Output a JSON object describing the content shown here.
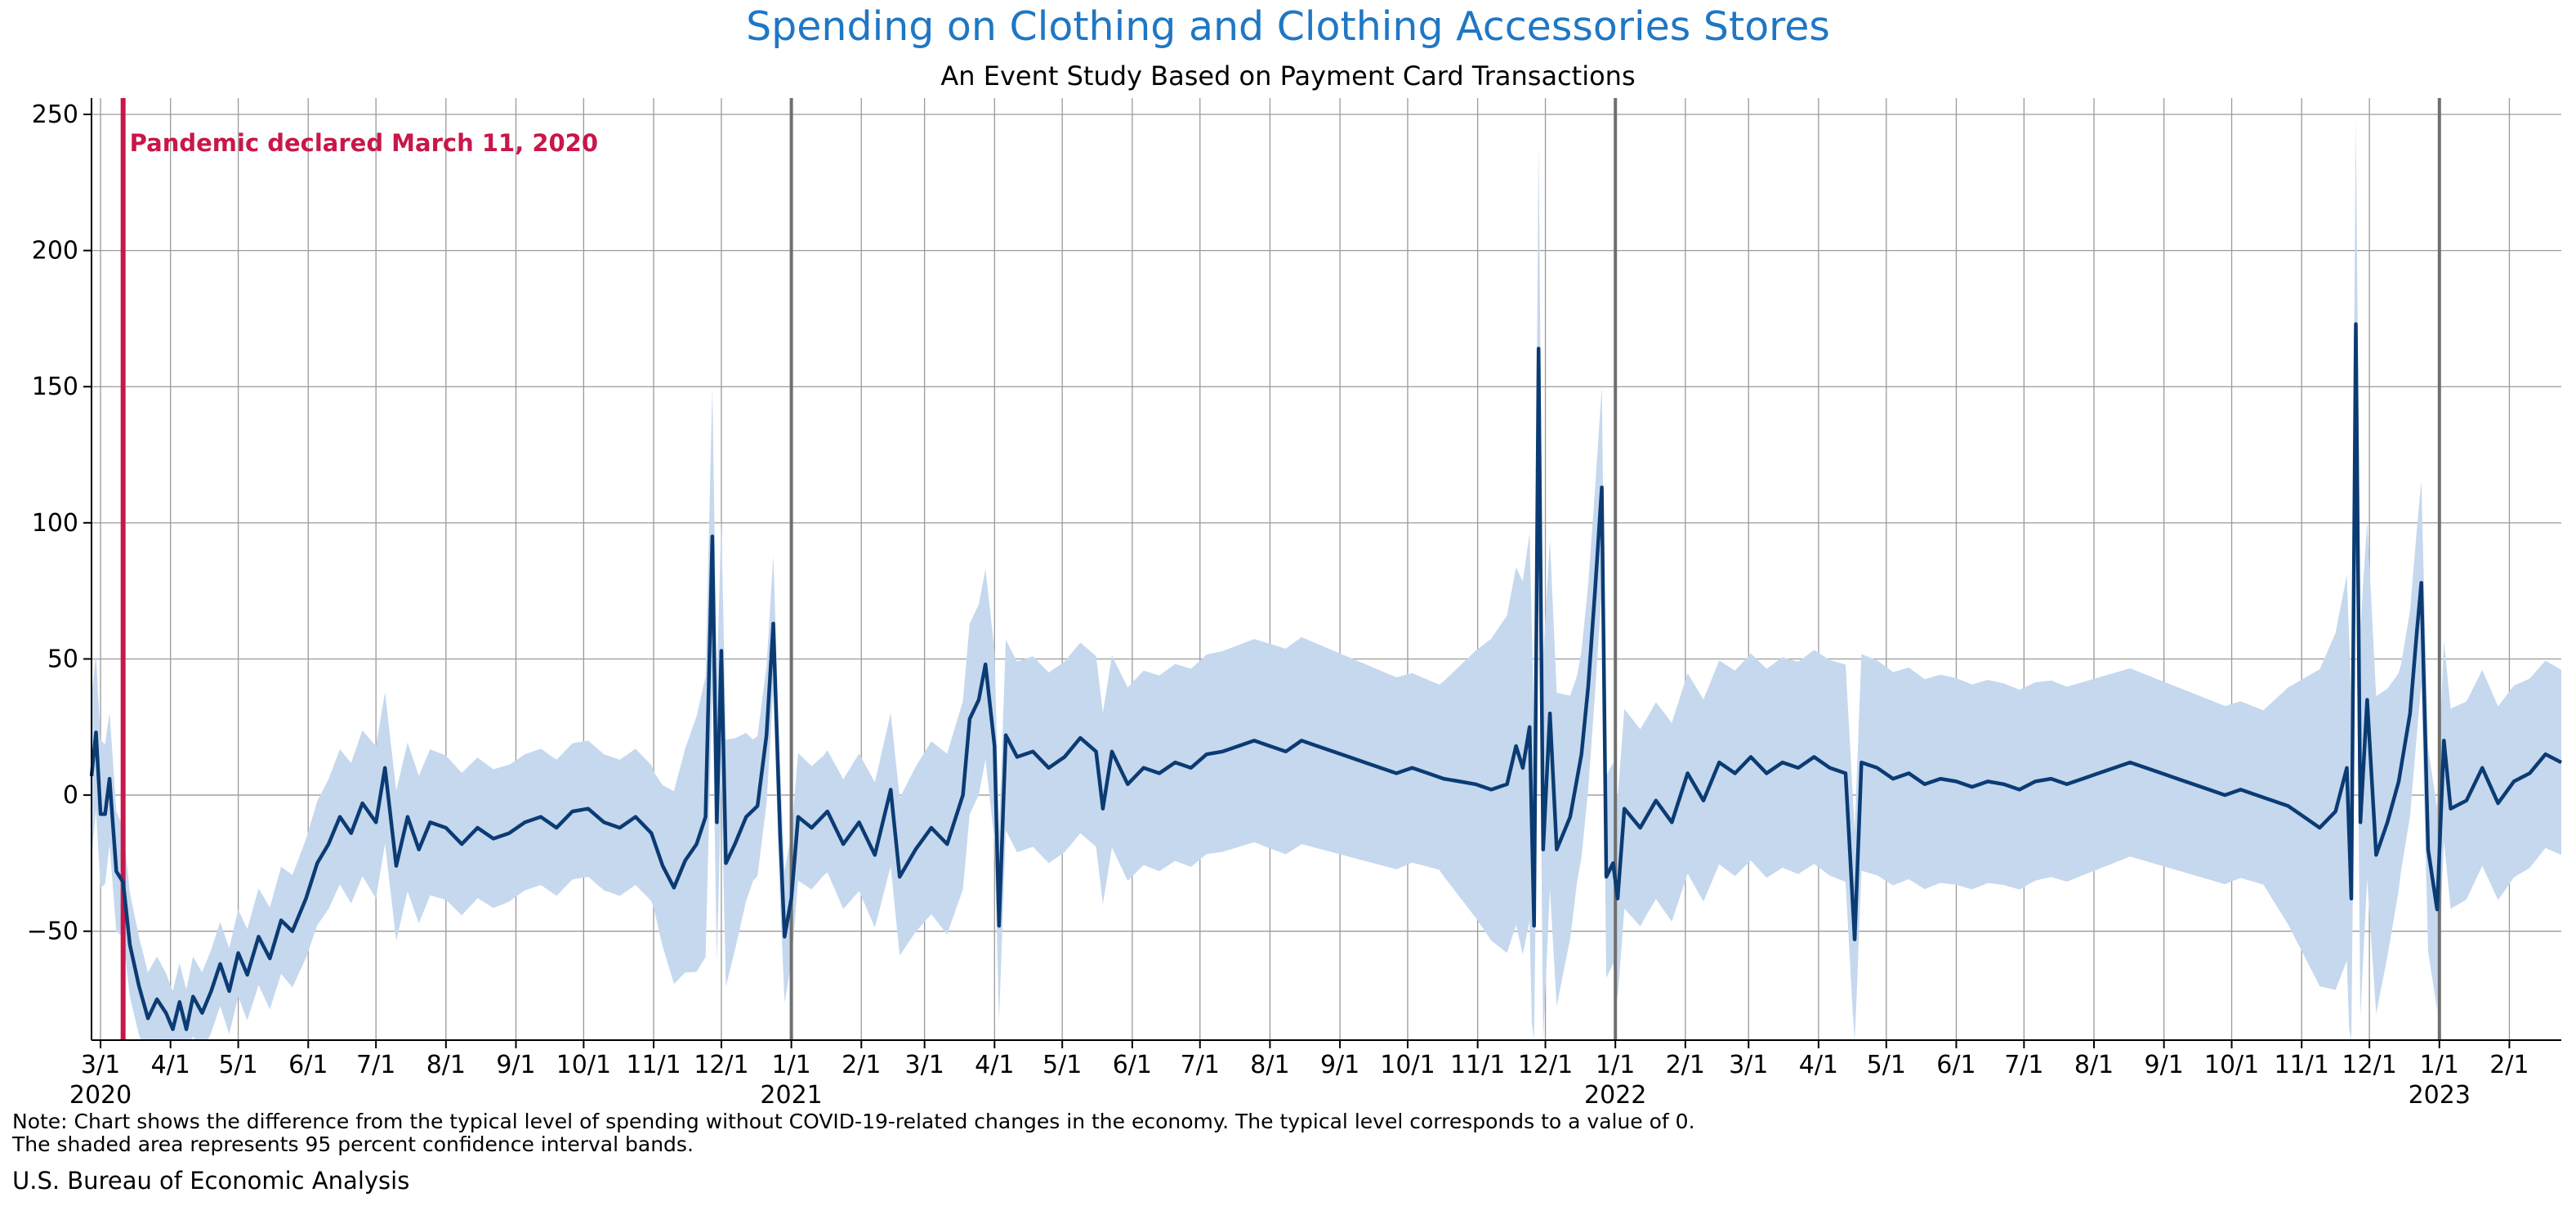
{
  "chart_data": {
    "type": "line",
    "title": "Spending on Clothing and Clothing Accessories Stores",
    "subtitle": "An Event Study Based on Payment Card Transactions",
    "ylim": [
      -90,
      256
    ],
    "yticks": [
      -50,
      0,
      50,
      100,
      150,
      200,
      250
    ],
    "x_range": [
      "2020-02-26",
      "2023-02-24"
    ],
    "grid": true,
    "x_ticks": [
      {
        "date": "2020-03-01",
        "label": "3/1",
        "year": "2020"
      },
      {
        "date": "2020-04-01",
        "label": "4/1"
      },
      {
        "date": "2020-05-01",
        "label": "5/1"
      },
      {
        "date": "2020-06-01",
        "label": "6/1"
      },
      {
        "date": "2020-07-01",
        "label": "7/1"
      },
      {
        "date": "2020-08-01",
        "label": "8/1"
      },
      {
        "date": "2020-09-01",
        "label": "9/1"
      },
      {
        "date": "2020-10-01",
        "label": "10/1"
      },
      {
        "date": "2020-11-01",
        "label": "11/1"
      },
      {
        "date": "2020-12-01",
        "label": "12/1"
      },
      {
        "date": "2021-01-01",
        "label": "1/1",
        "year": "2021"
      },
      {
        "date": "2021-02-01",
        "label": "2/1"
      },
      {
        "date": "2021-03-01",
        "label": "3/1"
      },
      {
        "date": "2021-04-01",
        "label": "4/1"
      },
      {
        "date": "2021-05-01",
        "label": "5/1"
      },
      {
        "date": "2021-06-01",
        "label": "6/1"
      },
      {
        "date": "2021-07-01",
        "label": "7/1"
      },
      {
        "date": "2021-08-01",
        "label": "8/1"
      },
      {
        "date": "2021-09-01",
        "label": "9/1"
      },
      {
        "date": "2021-10-01",
        "label": "10/1"
      },
      {
        "date": "2021-11-01",
        "label": "11/1"
      },
      {
        "date": "2021-12-01",
        "label": "12/1"
      },
      {
        "date": "2022-01-01",
        "label": "1/1",
        "year": "2022"
      },
      {
        "date": "2022-02-01",
        "label": "2/1"
      },
      {
        "date": "2022-03-01",
        "label": "3/1"
      },
      {
        "date": "2022-04-01",
        "label": "4/1"
      },
      {
        "date": "2022-05-01",
        "label": "5/1"
      },
      {
        "date": "2022-06-01",
        "label": "6/1"
      },
      {
        "date": "2022-07-01",
        "label": "7/1"
      },
      {
        "date": "2022-08-01",
        "label": "8/1"
      },
      {
        "date": "2022-09-01",
        "label": "9/1"
      },
      {
        "date": "2022-10-01",
        "label": "10/1"
      },
      {
        "date": "2022-11-01",
        "label": "11/1"
      },
      {
        "date": "2022-12-01",
        "label": "12/1"
      },
      {
        "date": "2023-01-01",
        "label": "1/1",
        "year": "2023"
      },
      {
        "date": "2023-02-01",
        "label": "2/1"
      }
    ],
    "annotation": {
      "date": "2020-03-11",
      "text": "Pandemic declared March 11, 2020",
      "color": "#c8174a"
    },
    "series": [
      {
        "role": "estimate",
        "color": "#0b3b73",
        "points": [
          [
            "2020-02-26",
            7
          ],
          [
            "2020-02-28",
            23
          ],
          [
            "2020-03-01",
            -7
          ],
          [
            "2020-03-03",
            -7
          ],
          [
            "2020-03-05",
            6
          ],
          [
            "2020-03-08",
            -28
          ],
          [
            "2020-03-11",
            -32
          ],
          [
            "2020-03-14",
            -55
          ],
          [
            "2020-03-18",
            -70
          ],
          [
            "2020-03-22",
            -82
          ],
          [
            "2020-03-26",
            -75
          ],
          [
            "2020-03-30",
            -80
          ],
          [
            "2020-04-02",
            -86
          ],
          [
            "2020-04-05",
            -76
          ],
          [
            "2020-04-08",
            -86
          ],
          [
            "2020-04-11",
            -74
          ],
          [
            "2020-04-15",
            -80
          ],
          [
            "2020-04-19",
            -72
          ],
          [
            "2020-04-23",
            -62
          ],
          [
            "2020-04-27",
            -72
          ],
          [
            "2020-05-01",
            -58
          ],
          [
            "2020-05-05",
            -66
          ],
          [
            "2020-05-10",
            -52
          ],
          [
            "2020-05-15",
            -60
          ],
          [
            "2020-05-20",
            -46
          ],
          [
            "2020-05-25",
            -50
          ],
          [
            "2020-05-31",
            -38
          ],
          [
            "2020-06-05",
            -25
          ],
          [
            "2020-06-10",
            -18
          ],
          [
            "2020-06-15",
            -8
          ],
          [
            "2020-06-20",
            -14
          ],
          [
            "2020-06-25",
            -3
          ],
          [
            "2020-07-01",
            -10
          ],
          [
            "2020-07-05",
            10
          ],
          [
            "2020-07-10",
            -26
          ],
          [
            "2020-07-15",
            -8
          ],
          [
            "2020-07-20",
            -20
          ],
          [
            "2020-07-25",
            -10
          ],
          [
            "2020-08-01",
            -12
          ],
          [
            "2020-08-08",
            -18
          ],
          [
            "2020-08-15",
            -12
          ],
          [
            "2020-08-22",
            -16
          ],
          [
            "2020-08-29",
            -14
          ],
          [
            "2020-09-05",
            -10
          ],
          [
            "2020-09-12",
            -8
          ],
          [
            "2020-09-19",
            -12
          ],
          [
            "2020-09-26",
            -6
          ],
          [
            "2020-10-03",
            -5
          ],
          [
            "2020-10-10",
            -10
          ],
          [
            "2020-10-17",
            -12
          ],
          [
            "2020-10-24",
            -8
          ],
          [
            "2020-10-31",
            -14
          ],
          [
            "2020-11-05",
            -26
          ],
          [
            "2020-11-10",
            -34
          ],
          [
            "2020-11-15",
            -24
          ],
          [
            "2020-11-20",
            -18
          ],
          [
            "2020-11-24",
            -8
          ],
          [
            "2020-11-27",
            95
          ],
          [
            "2020-11-29",
            -10
          ],
          [
            "2020-12-01",
            53
          ],
          [
            "2020-12-03",
            -25
          ],
          [
            "2020-12-07",
            -18
          ],
          [
            "2020-12-12",
            -8
          ],
          [
            "2020-12-17",
            -4
          ],
          [
            "2020-12-21",
            22
          ],
          [
            "2020-12-24",
            63
          ],
          [
            "2020-12-27",
            -14
          ],
          [
            "2020-12-29",
            -52
          ],
          [
            "2021-01-01",
            -38
          ],
          [
            "2021-01-04",
            -8
          ],
          [
            "2021-01-10",
            -12
          ],
          [
            "2021-01-17",
            -6
          ],
          [
            "2021-01-24",
            -18
          ],
          [
            "2021-01-31",
            -10
          ],
          [
            "2021-02-07",
            -22
          ],
          [
            "2021-02-14",
            2
          ],
          [
            "2021-02-18",
            -30
          ],
          [
            "2021-02-25",
            -20
          ],
          [
            "2021-03-04",
            -12
          ],
          [
            "2021-03-11",
            -18
          ],
          [
            "2021-03-18",
            0
          ],
          [
            "2021-03-21",
            28
          ],
          [
            "2021-03-25",
            35
          ],
          [
            "2021-03-28",
            48
          ],
          [
            "2021-04-01",
            18
          ],
          [
            "2021-04-03",
            -48
          ],
          [
            "2021-04-06",
            22
          ],
          [
            "2021-04-11",
            14
          ],
          [
            "2021-04-18",
            16
          ],
          [
            "2021-04-25",
            10
          ],
          [
            "2021-05-02",
            14
          ],
          [
            "2021-05-09",
            21
          ],
          [
            "2021-05-16",
            16
          ],
          [
            "2021-05-19",
            -5
          ],
          [
            "2021-05-23",
            16
          ],
          [
            "2021-05-30",
            4
          ],
          [
            "2021-06-06",
            10
          ],
          [
            "2021-06-13",
            8
          ],
          [
            "2021-06-20",
            12
          ],
          [
            "2021-06-27",
            10
          ],
          [
            "2021-07-04",
            15
          ],
          [
            "2021-07-11",
            16
          ],
          [
            "2021-07-18",
            18
          ],
          [
            "2021-07-25",
            20
          ],
          [
            "2021-08-01",
            18
          ],
          [
            "2021-08-08",
            16
          ],
          [
            "2021-08-15",
            20
          ],
          [
            "2021-08-22",
            18
          ],
          [
            "2021-08-29",
            16
          ],
          [
            "2021-09-05",
            14
          ],
          [
            "2021-09-12",
            12
          ],
          [
            "2021-09-19",
            10
          ],
          [
            "2021-09-26",
            8
          ],
          [
            "2021-10-03",
            10
          ],
          [
            "2021-10-10",
            8
          ],
          [
            "2021-10-17",
            6
          ],
          [
            "2021-10-24",
            5
          ],
          [
            "2021-10-31",
            4
          ],
          [
            "2021-11-07",
            2
          ],
          [
            "2021-11-14",
            4
          ],
          [
            "2021-11-18",
            18
          ],
          [
            "2021-11-21",
            10
          ],
          [
            "2021-11-24",
            25
          ],
          [
            "2021-11-26",
            -48
          ],
          [
            "2021-11-28",
            164
          ],
          [
            "2021-11-30",
            -20
          ],
          [
            "2021-12-03",
            30
          ],
          [
            "2021-12-06",
            -20
          ],
          [
            "2021-12-12",
            -8
          ],
          [
            "2021-12-17",
            15
          ],
          [
            "2021-12-20",
            40
          ],
          [
            "2021-12-23",
            75
          ],
          [
            "2021-12-26",
            113
          ],
          [
            "2021-12-28",
            -30
          ],
          [
            "2021-12-31",
            -25
          ],
          [
            "2022-01-02",
            -38
          ],
          [
            "2022-01-05",
            -5
          ],
          [
            "2022-01-12",
            -12
          ],
          [
            "2022-01-19",
            -2
          ],
          [
            "2022-01-26",
            -10
          ],
          [
            "2022-02-02",
            8
          ],
          [
            "2022-02-09",
            -2
          ],
          [
            "2022-02-16",
            12
          ],
          [
            "2022-02-23",
            8
          ],
          [
            "2022-03-02",
            14
          ],
          [
            "2022-03-09",
            8
          ],
          [
            "2022-03-16",
            12
          ],
          [
            "2022-03-23",
            10
          ],
          [
            "2022-03-30",
            14
          ],
          [
            "2022-04-06",
            10
          ],
          [
            "2022-04-13",
            8
          ],
          [
            "2022-04-17",
            -53
          ],
          [
            "2022-04-20",
            12
          ],
          [
            "2022-04-27",
            10
          ],
          [
            "2022-05-04",
            6
          ],
          [
            "2022-05-11",
            8
          ],
          [
            "2022-05-18",
            4
          ],
          [
            "2022-05-25",
            6
          ],
          [
            "2022-06-01",
            5
          ],
          [
            "2022-06-08",
            3
          ],
          [
            "2022-06-15",
            5
          ],
          [
            "2022-06-22",
            4
          ],
          [
            "2022-06-29",
            2
          ],
          [
            "2022-07-06",
            5
          ],
          [
            "2022-07-13",
            6
          ],
          [
            "2022-07-20",
            4
          ],
          [
            "2022-07-27",
            6
          ],
          [
            "2022-08-03",
            8
          ],
          [
            "2022-08-10",
            10
          ],
          [
            "2022-08-17",
            12
          ],
          [
            "2022-08-24",
            10
          ],
          [
            "2022-08-31",
            8
          ],
          [
            "2022-09-07",
            6
          ],
          [
            "2022-09-14",
            4
          ],
          [
            "2022-09-21",
            2
          ],
          [
            "2022-09-28",
            0
          ],
          [
            "2022-10-05",
            2
          ],
          [
            "2022-10-12",
            0
          ],
          [
            "2022-10-19",
            -2
          ],
          [
            "2022-10-26",
            -4
          ],
          [
            "2022-11-02",
            -8
          ],
          [
            "2022-11-09",
            -12
          ],
          [
            "2022-11-16",
            -6
          ],
          [
            "2022-11-21",
            10
          ],
          [
            "2022-11-23",
            -38
          ],
          [
            "2022-11-25",
            173
          ],
          [
            "2022-11-27",
            -10
          ],
          [
            "2022-11-30",
            35
          ],
          [
            "2022-12-04",
            -22
          ],
          [
            "2022-12-09",
            -10
          ],
          [
            "2022-12-14",
            5
          ],
          [
            "2022-12-19",
            30
          ],
          [
            "2022-12-22",
            60
          ],
          [
            "2022-12-24",
            78
          ],
          [
            "2022-12-27",
            -20
          ],
          [
            "2022-12-31",
            -42
          ],
          [
            "2023-01-03",
            20
          ],
          [
            "2023-01-06",
            -5
          ],
          [
            "2023-01-13",
            -2
          ],
          [
            "2023-01-20",
            10
          ],
          [
            "2023-01-27",
            -3
          ],
          [
            "2023-02-03",
            5
          ],
          [
            "2023-02-10",
            8
          ],
          [
            "2023-02-17",
            15
          ],
          [
            "2023-02-24",
            12
          ]
        ]
      },
      {
        "role": "95% confidence band",
        "color": "#c5d8ee",
        "halfwidth": [
          [
            "2020-02-26",
            30
          ],
          [
            "2020-03-11",
            20
          ],
          [
            "2020-04-01",
            14
          ],
          [
            "2020-05-01",
            16
          ],
          [
            "2020-06-01",
            22
          ],
          [
            "2020-07-01",
            28
          ],
          [
            "2020-09-01",
            25
          ],
          [
            "2020-11-01",
            25
          ],
          [
            "2020-11-27",
            55
          ],
          [
            "2020-12-15",
            26
          ],
          [
            "2021-01-15",
            22
          ],
          [
            "2021-03-20",
            35
          ],
          [
            "2021-05-15",
            35
          ],
          [
            "2021-08-15",
            38
          ],
          [
            "2021-10-15",
            34
          ],
          [
            "2021-11-28",
            75
          ],
          [
            "2021-12-15",
            38
          ],
          [
            "2022-01-15",
            36
          ],
          [
            "2022-04-15",
            40
          ],
          [
            "2022-07-15",
            36
          ],
          [
            "2022-10-15",
            32
          ],
          [
            "2022-11-25",
            75
          ],
          [
            "2022-12-15",
            38
          ],
          [
            "2023-02-24",
            34
          ]
        ]
      }
    ]
  },
  "footer": {
    "note_line1": "Note: Chart shows the difference from the typical level of spending without COVID-19-related changes in the economy. The typical level corresponds to a value of 0.",
    "note_line2": "The shaded area represents 95 percent confidence interval bands.",
    "source": "U.S. Bureau of Economic Analysis"
  }
}
